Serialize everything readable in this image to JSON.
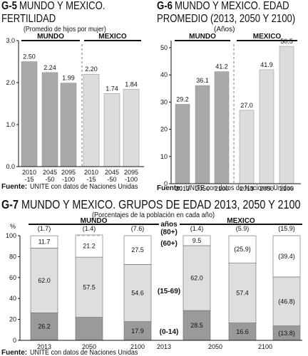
{
  "chart_data": [
    {
      "type": "bar",
      "code": "G-5",
      "title": "MUNDO Y MEXICO.",
      "title_line2": "FERTILIDAD",
      "subtitle": "(Promedio de hijos por mujer)",
      "groups": [
        "MUNDO",
        "MEXICO"
      ],
      "categories": [
        [
          "2010",
          "-15"
        ],
        [
          "2045",
          "-50"
        ],
        [
          "2095",
          "-100"
        ],
        [
          "2010",
          "-15"
        ],
        [
          "2045",
          "-50"
        ],
        [
          "2095",
          "-100"
        ]
      ],
      "values": [
        2.5,
        2.24,
        1.99,
        2.2,
        1.74,
        1.84
      ],
      "value_labels": [
        "2.50",
        "2.24",
        "1.99",
        "2.20",
        "1.74",
        "1.84"
      ],
      "yticks": [
        "0.0",
        "1.0",
        "2.0",
        "3.0"
      ],
      "ylim": [
        0,
        3
      ],
      "colors": {
        "mundo": "#a9a9a9",
        "mexico": "#dcdcdc"
      },
      "source_label": "Fuente:",
      "source": "UNITE con datos de Naciones Unidas"
    },
    {
      "type": "bar",
      "code": "G-6",
      "title": "MUNDO Y MEXICO. EDAD",
      "title_line2": "PROMEDIO (2013, 2050 Y 2100)",
      "subtitle": "(Años)",
      "groups": [
        "MUNDO",
        "MEXICO"
      ],
      "categories": [
        "2013",
        "2050",
        "2100",
        "2013",
        "2050",
        "2100"
      ],
      "values": [
        29.2,
        36.1,
        41.2,
        27.0,
        41.9,
        50.5
      ],
      "value_labels": [
        "29.2",
        "36.1",
        "41.2",
        "27.0",
        "41.9",
        "50.5"
      ],
      "yticks": [
        "0",
        "10",
        "20",
        "30",
        "40",
        "50"
      ],
      "ylim": [
        0,
        55
      ],
      "colors": {
        "mundo": "#a9a9a9",
        "mexico": "#dcdcdc"
      },
      "source_label": "Fuente:",
      "source": "UNITE con datos de Naciones Unidas"
    },
    {
      "type": "bar",
      "stacked": true,
      "code": "G-7",
      "title": "MUNDO Y MEXICO. GRUPOS DE EDAD 2013, 2050 Y 2100",
      "subtitle": "(Porcentajes de la población en cada año)",
      "ylabel": "%",
      "groups": [
        "MUNDO",
        "MEXICO"
      ],
      "categories": [
        "2013",
        "2050",
        "2100",
        "2013",
        "2050",
        "2100"
      ],
      "yticks": [
        "0",
        "20",
        "40",
        "60",
        "80",
        "100"
      ],
      "ylim": [
        0,
        100
      ],
      "series": [
        {
          "name": "(0-14)",
          "values": [
            26.2,
            22.0,
            17.9,
            28.5,
            16.6,
            13.8
          ],
          "labels": [
            "26.2",
            "",
            "17.9",
            "28.5",
            "16.6",
            "(13.8)"
          ]
        },
        {
          "name": "(15-69)",
          "values": [
            62.0,
            57.5,
            54.6,
            62.0,
            57.4,
            46.8
          ],
          "labels": [
            "62.0",
            "57.5",
            "54.6",
            "62.0",
            "57.4",
            "(46.8)"
          ]
        },
        {
          "name": "(60+)",
          "values": [
            11.7,
            21.2,
            27.5,
            9.5,
            25.9,
            39.4
          ],
          "labels": [
            "11.7",
            "21.2",
            "27.5",
            "9.5",
            "(25.9)",
            "(39.4)"
          ]
        }
      ],
      "top_labels": [
        "(1.7)",
        "(1.4)",
        "(7.6)",
        "(1.4)",
        "(5.9)",
        "(15.9)"
      ],
      "band_labels": {
        "header": "años",
        "a": "(80+)",
        "b": "(60+)",
        "c": "(15-69)",
        "d": "(0-14)"
      },
      "colors": {
        "young": "#9a9a9a",
        "adult": "#dedede",
        "old": "#ffffff"
      },
      "source_label": "Fuente:",
      "source": "UNITE con datos de Naciones Unidas"
    }
  ]
}
